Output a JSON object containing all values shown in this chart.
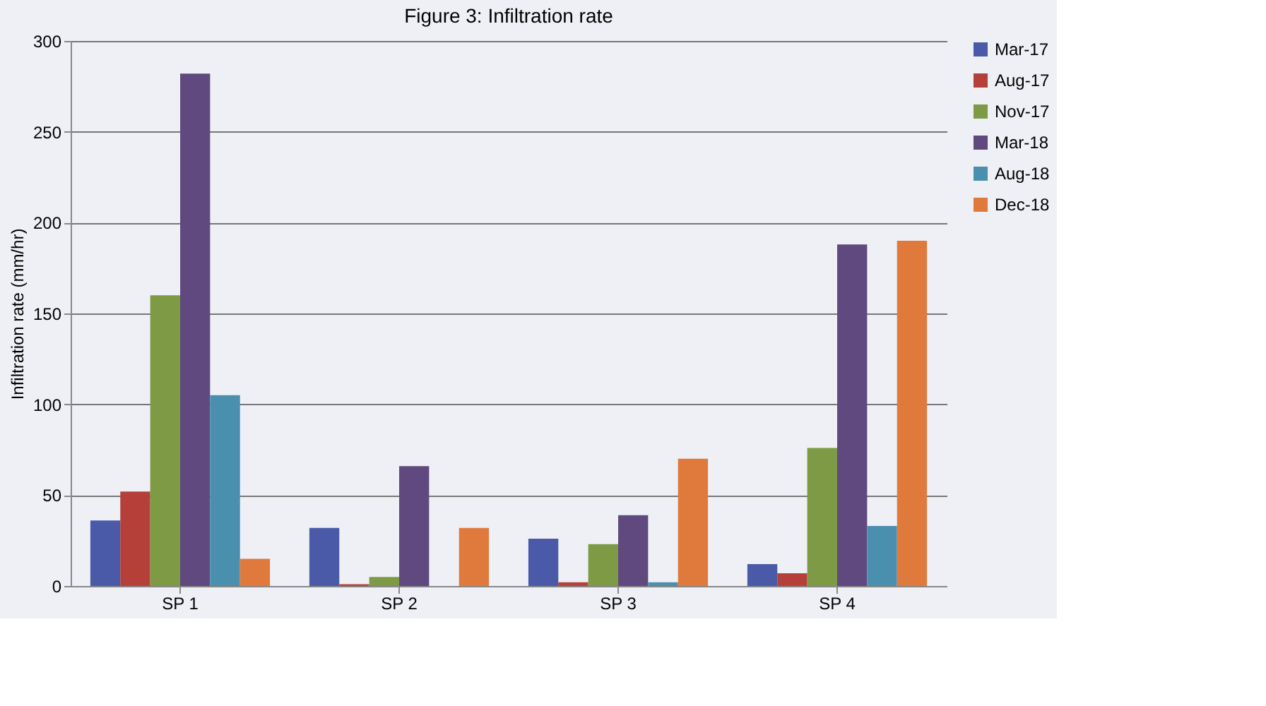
{
  "chart_data": {
    "type": "bar",
    "title": "Figure 3: Infiltration rate",
    "ylabel": "Infiltration rate (mm/hr)",
    "categories": [
      "SP 1",
      "SP 2",
      "SP 3",
      "SP 4"
    ],
    "series": [
      {
        "name": "Mar-17",
        "color": "#4a5aa8",
        "values": [
          36,
          32,
          26,
          12
        ]
      },
      {
        "name": "Aug-17",
        "color": "#b5403a",
        "values": [
          52,
          1,
          2,
          7
        ]
      },
      {
        "name": "Nov-17",
        "color": "#7e9a45",
        "values": [
          160,
          5,
          23,
          76
        ]
      },
      {
        "name": "Mar-18",
        "color": "#60497f",
        "values": [
          282,
          66,
          39,
          188
        ]
      },
      {
        "name": "Aug-18",
        "color": "#4a8fae",
        "values": [
          105,
          0,
          2,
          33
        ]
      },
      {
        "name": "Dec-18",
        "color": "#e07a3c",
        "values": [
          15,
          32,
          70,
          190
        ]
      }
    ],
    "ylim": [
      0,
      300
    ],
    "yticks": [
      0,
      50,
      100,
      150,
      200,
      250,
      300
    ],
    "grid": "y",
    "legend": "right"
  }
}
